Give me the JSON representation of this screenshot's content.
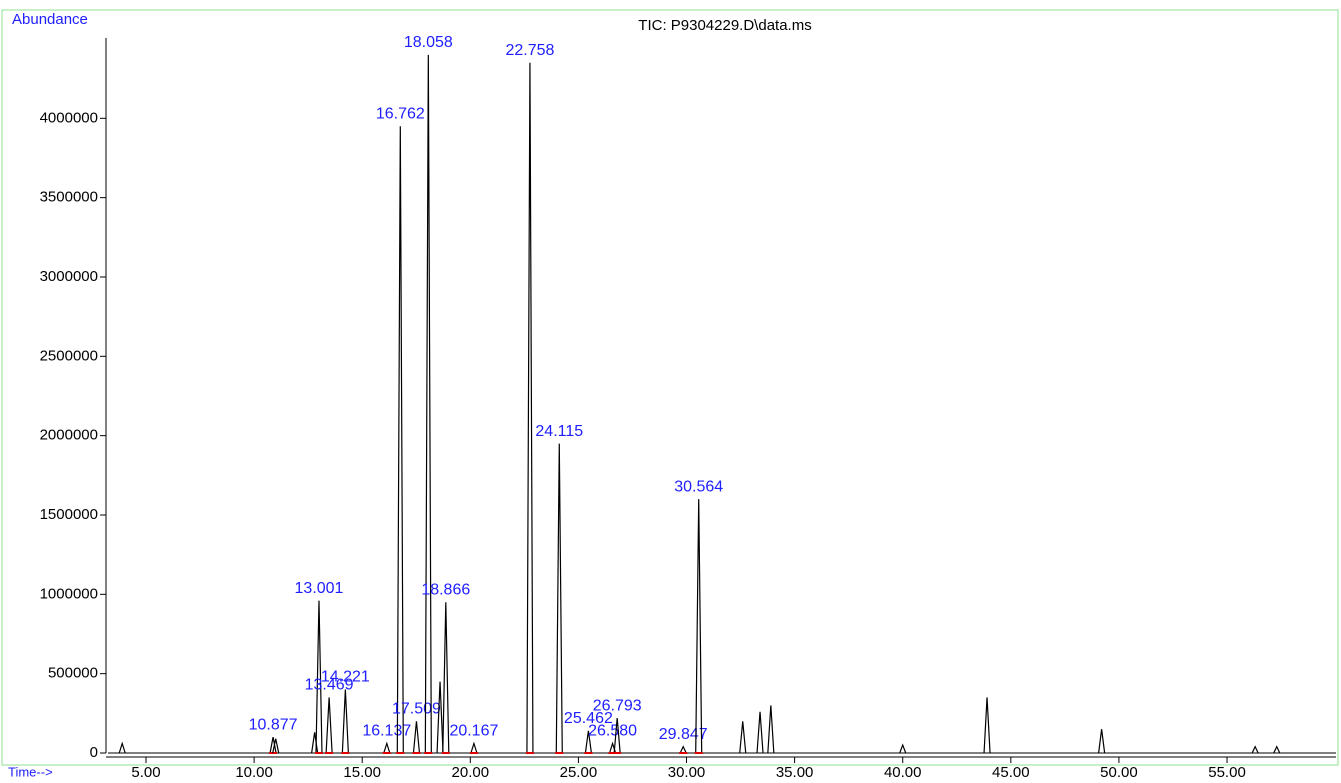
{
  "chart_data": {
    "type": "chromatogram",
    "title": "TIC: P9304229.D\\data.ms",
    "y_label": "Abundance",
    "x_label": "Time-->",
    "color": "#000000",
    "label_color": "#2020ff",
    "frame_color": "#90e090",
    "xlim": [
      3.15,
      60.04
    ],
    "ylim": [
      0,
      4670000
    ],
    "xticks": [
      {
        "value": 5,
        "label": "5.00"
      },
      {
        "value": 10,
        "label": "10.00"
      },
      {
        "value": 15,
        "label": "15.00"
      },
      {
        "value": 20,
        "label": "20.00"
      },
      {
        "value": 25,
        "label": "25.00"
      },
      {
        "value": 30,
        "label": "30.00"
      },
      {
        "value": 35,
        "label": "35.00"
      },
      {
        "value": 40,
        "label": "40.00"
      },
      {
        "value": 45,
        "label": "45.00"
      },
      {
        "value": 50,
        "label": "50.00"
      },
      {
        "value": 55,
        "label": "55.00"
      }
    ],
    "yticks": [
      0,
      500000,
      1000000,
      1500000,
      2000000,
      2500000,
      3000000,
      3500000,
      4000000
    ],
    "peaks": {
      "x": [
        3.9,
        10.877,
        11.0,
        12.8,
        13.001,
        13.469,
        14.221,
        16.137,
        16.762,
        17.509,
        18.058,
        18.6,
        18.866,
        20.167,
        22.758,
        24.115,
        25.462,
        26.58,
        26.793,
        29.847,
        30.564,
        32.6,
        33.4,
        33.9,
        40.0,
        43.9,
        49.2,
        56.3,
        57.3
      ],
      "values": [
        60000,
        100000,
        90000,
        130000,
        960000,
        350000,
        400000,
        60000,
        3950000,
        200000,
        4400000,
        450000,
        950000,
        60000,
        4350000,
        1950000,
        140000,
        60000,
        220000,
        40000,
        1600000,
        200000,
        260000,
        300000,
        50000,
        350000,
        150000,
        40000,
        40000
      ],
      "labels": [
        null,
        "10.877",
        null,
        null,
        "13.001",
        "13.469",
        "14.221",
        "16.137",
        "16.762",
        "17.509",
        "18.058",
        null,
        "18.866",
        "20.167",
        "22.758",
        "24.115",
        "25.462",
        "26.580",
        "26.793",
        "29.847",
        "30.564",
        null,
        null,
        null,
        null,
        null,
        null,
        null,
        null
      ]
    }
  }
}
